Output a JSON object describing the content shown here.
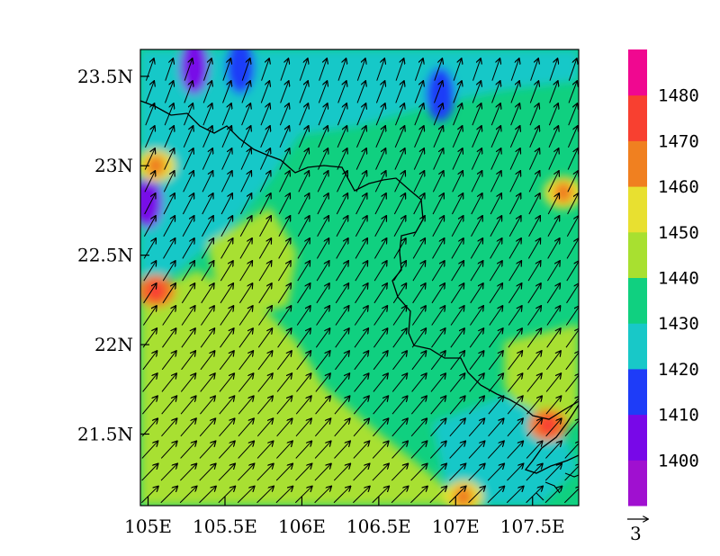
{
  "map": {
    "type": "contour-fill with wind vectors",
    "extent": {
      "lon": [
        104.95,
        107.8
      ],
      "lat": [
        21.1,
        23.65
      ]
    },
    "x_ticks": [
      {
        "value": 105.0,
        "label": "105E"
      },
      {
        "value": 105.5,
        "label": "105.5E"
      },
      {
        "value": 106.0,
        "label": "106E"
      },
      {
        "value": 106.5,
        "label": "106.5E"
      },
      {
        "value": 107.0,
        "label": "107E"
      },
      {
        "value": 107.5,
        "label": "107.5E"
      }
    ],
    "y_ticks": [
      {
        "value": 21.5,
        "label": "21.5N"
      },
      {
        "value": 22.0,
        "label": "22N"
      },
      {
        "value": 22.5,
        "label": "22.5N"
      },
      {
        "value": 23.0,
        "label": "23N"
      },
      {
        "value": 23.5,
        "label": "23.5N"
      }
    ],
    "dominant_levels": {
      "west_northwest": 1420,
      "central": 1430,
      "southwest": 1440
    },
    "hotspots": [
      {
        "lon": 105.05,
        "lat": 23.0,
        "level": 1460
      },
      {
        "lon": 105.05,
        "lat": 22.3,
        "level": 1470
      },
      {
        "lon": 107.6,
        "lat": 21.55,
        "level": 1470
      },
      {
        "lon": 107.05,
        "lat": 21.15,
        "level": 1460
      },
      {
        "lon": 107.7,
        "lat": 22.85,
        "level": 1460
      }
    ],
    "low_zones": [
      {
        "lon": 105.0,
        "lat": 22.8,
        "level": 1400
      },
      {
        "lon": 105.3,
        "lat": 23.55,
        "level": 1400
      },
      {
        "lon": 105.6,
        "lat": 23.55,
        "level": 1410
      },
      {
        "lon": 106.9,
        "lat": 23.4,
        "level": 1410
      }
    ],
    "wind": {
      "prevailing_direction": "south-southwest",
      "reference_vector_label": "3",
      "grid_step_deg": 0.125
    }
  },
  "colorbar": {
    "levels": [
      1400,
      1410,
      1420,
      1430,
      1440,
      1450,
      1460,
      1470,
      1480
    ],
    "labels": [
      "1400",
      "1410",
      "1420",
      "1430",
      "1440",
      "1450",
      "1460",
      "1470",
      "1480"
    ],
    "colors": [
      "#a010d0",
      "#7808e8",
      "#1e3cf8",
      "#18c8c8",
      "#10d080",
      "#a8e030",
      "#e8e030",
      "#f08020",
      "#f84030",
      "#f00890"
    ]
  }
}
